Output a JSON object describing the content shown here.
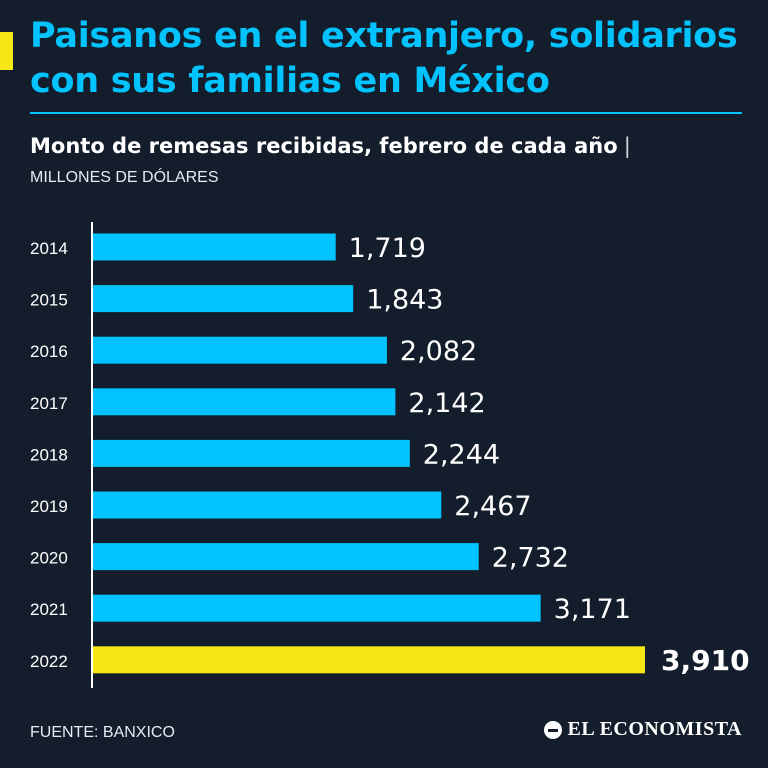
{
  "header": {
    "title": "Paisanos en el extranjero, solidarios con sus familias en México",
    "subtitle": "Monto de remesas recibidas, febrero de cada año",
    "separator": "|",
    "units": "MILLONES DE DÓLARES"
  },
  "footer": {
    "source": "FUENTE: BANXICO",
    "brand": "EL ECONOMISTA"
  },
  "colors": {
    "background": "#141d2b",
    "bar": "#00c3ff",
    "highlight": "#f6e816",
    "text": "#ffffff"
  },
  "chart_data": {
    "type": "bar",
    "orientation": "horizontal",
    "title": "Monto de remesas recibidas, febrero de cada año",
    "ylabel": "",
    "xlabel": "MILLONES DE DÓLARES",
    "categories": [
      "2014",
      "2015",
      "2016",
      "2017",
      "2018",
      "2019",
      "2020",
      "2021",
      "2022"
    ],
    "values": [
      1719,
      1843,
      2082,
      2142,
      2244,
      2467,
      2732,
      3171,
      3910
    ],
    "value_labels": [
      "1,719",
      "1,843",
      "2,082",
      "2,142",
      "2,244",
      "2,467",
      "2,732",
      "3,171",
      "3,910"
    ],
    "highlight_category": "2022",
    "xlim": [
      0,
      3910
    ]
  }
}
